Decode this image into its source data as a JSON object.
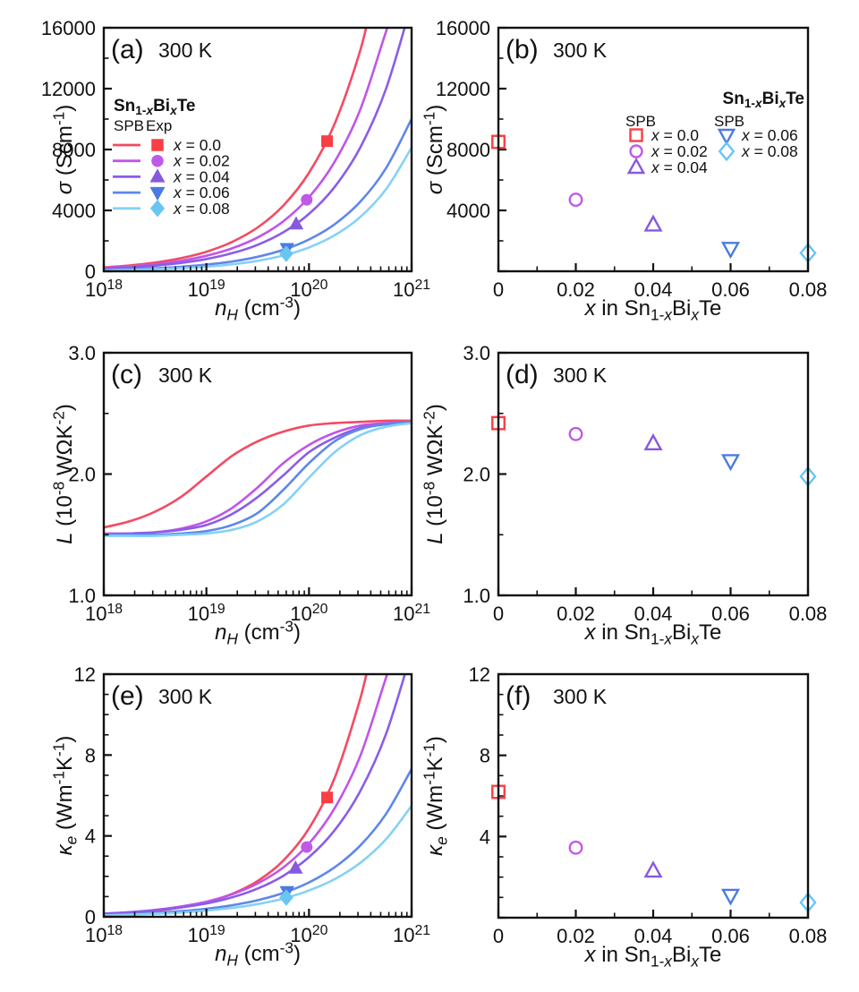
{
  "figure": {
    "temperature": "300 K",
    "material": "Sn_{1-/x/}Bi_{/x/}Te"
  },
  "styles": {
    "background": "#ffffff",
    "axis_color": "#111111",
    "line_colors": [
      "#f44a63",
      "#c055e8",
      "#8a5de8",
      "#5e86ec",
      "#85d1f6"
    ],
    "marker_colors": [
      "#fa3e44",
      "#bf5ae8",
      "#8659dd",
      "#4b7ae3",
      "#69c6f1"
    ],
    "markers": [
      "square",
      "circle",
      "triangle-up",
      "triangle-down",
      "diamond"
    ]
  },
  "series_labels": [
    "/x/ = 0.0",
    "/x/ = 0.02",
    "/x/ = 0.04",
    "/x/ = 0.06",
    "/x/ = 0.08"
  ],
  "log_x_samples": [
    18,
    18.25,
    18.5,
    18.75,
    19,
    19.25,
    19.5,
    19.75,
    20,
    20.25,
    20.5,
    20.75,
    21
  ],
  "chart_data": [
    {
      "id": "a",
      "panel_label": "(a)",
      "annotation": "300 K",
      "type": "line",
      "x_scale": "log",
      "xlabel": "/n/_{/H/} (cm^{-3})",
      "ylabel": "/σ/ (Scm^{-1})",
      "xlim_log": [
        18,
        21
      ],
      "ylim": [
        0,
        16000
      ],
      "xtick_labels": [
        "10^{18}",
        "10^{19}",
        "10^{20}",
        "10^{21}"
      ],
      "yticks": [
        0,
        4000,
        8000,
        12000,
        16000
      ],
      "ytick_labels": [
        "0",
        "4000",
        "8000",
        "12000",
        "16000"
      ],
      "yminor": [
        2000,
        6000,
        10000,
        14000
      ],
      "series": [
        {
          "name": "x = 0.0",
          "values": [
            255,
            382,
            573,
            858,
            1285,
            1925,
            2884,
            4320,
            6472,
            9695,
            14523,
            21756,
            32591
          ]
        },
        {
          "name": "x = 0.02",
          "values": [
            212,
            314,
            465,
            687,
            1016,
            1503,
            2223,
            3288,
            4863,
            7192,
            10637,
            15732,
            23268
          ]
        },
        {
          "name": "x = 0.04",
          "values": [
            173,
            254,
            373,
            549,
            807,
            1186,
            1744,
            2563,
            3768,
            5539,
            8143,
            11970,
            17596
          ]
        },
        {
          "name": "x = 0.06",
          "values": [
            91,
            134,
            199,
            294,
            435,
            644,
            953,
            1410,
            2087,
            3089,
            4572,
            6766,
            10014
          ]
        },
        {
          "name": "x = 0.08",
          "values": [
            58,
            88,
            133,
            200,
            302,
            456,
            688,
            1038,
            1567,
            2364,
            3568,
            5384,
            8124
          ]
        }
      ],
      "exp_points": {
        "n_H": [
          1.5e+20,
          9.5e+19,
          7.5e+19,
          6.1e+19,
          6e+19
        ],
        "values": [
          8550,
          4700,
          3100,
          1500,
          1150
        ]
      },
      "legend": {
        "title": "Sn_{1-/x/}Bi_{/x/}Te",
        "headers": [
          "SPB",
          "Exp"
        ],
        "items": [
          0,
          1,
          2,
          3,
          4
        ]
      }
    },
    {
      "id": "b",
      "panel_label": "(b)",
      "annotation": "300 K",
      "type": "scatter",
      "xlabel": "/x/ in Sn_{1-/x/}Bi_{/x/}Te",
      "ylabel": "/σ/ (Scm^{-1})",
      "xlim": [
        0,
        0.08
      ],
      "ylim": [
        0,
        16000
      ],
      "xticks": [
        0,
        0.02,
        0.04,
        0.06,
        0.08
      ],
      "xtick_labels": [
        "0",
        "0.02",
        "0.04",
        "0.06",
        "0.08"
      ],
      "xminor": [
        0.01,
        0.03,
        0.05,
        0.07
      ],
      "yticks": [
        0,
        4000,
        8000,
        12000,
        16000
      ],
      "ytick_labels": [
        "",
        "4000",
        "8000",
        "12000",
        "16000"
      ],
      "yminor": [
        2000,
        6000,
        10000,
        14000
      ],
      "x": [
        0,
        0.02,
        0.04,
        0.06,
        0.08
      ],
      "values": [
        8500,
        4700,
        3050,
        1500,
        1200
      ],
      "legend": {
        "title": "Sn_{1-/x/}Bi_{/x/}Te",
        "columns": [
          {
            "header": "SPB",
            "items": [
              0,
              1,
              2
            ]
          },
          {
            "header": "SPB",
            "items": [
              3,
              4
            ]
          }
        ]
      }
    },
    {
      "id": "c",
      "panel_label": "(c)",
      "annotation": "300 K",
      "type": "line",
      "x_scale": "log",
      "xlabel": "/n/_{/H/} (cm^{-3})",
      "ylabel": "/L/ (10^{-8} WΩK^{-2})",
      "xlim_log": [
        18,
        21
      ],
      "ylim": [
        1.0,
        3.0
      ],
      "xtick_labels": [
        "10^{18}",
        "10^{19}",
        "10^{20}",
        "10^{21}"
      ],
      "yticks": [
        1.0,
        2.0,
        3.0
      ],
      "ytick_labels": [
        "1.0",
        "2.0",
        "3.0"
      ],
      "yminor": [
        1.5,
        2.5
      ],
      "series": [
        {
          "name": "x = 0.0",
          "values": [
            1.56,
            1.61,
            1.69,
            1.81,
            1.98,
            2.15,
            2.27,
            2.35,
            2.4,
            2.42,
            2.43,
            2.44,
            2.44
          ]
        },
        {
          "name": "x = 0.02",
          "values": [
            1.51,
            1.51,
            1.52,
            1.55,
            1.61,
            1.72,
            1.89,
            2.09,
            2.24,
            2.34,
            2.4,
            2.42,
            2.43
          ]
        },
        {
          "name": "x = 0.04",
          "values": [
            1.5,
            1.51,
            1.52,
            1.54,
            1.58,
            1.67,
            1.81,
            1.99,
            2.18,
            2.3,
            2.38,
            2.41,
            2.43
          ]
        },
        {
          "name": "x = 0.06",
          "values": [
            1.5,
            1.5,
            1.5,
            1.51,
            1.53,
            1.58,
            1.68,
            1.87,
            2.09,
            2.27,
            2.37,
            2.41,
            2.43
          ]
        },
        {
          "name": "x = 0.08",
          "values": [
            1.49,
            1.49,
            1.49,
            1.5,
            1.51,
            1.54,
            1.61,
            1.75,
            1.97,
            2.18,
            2.32,
            2.39,
            2.42
          ]
        }
      ]
    },
    {
      "id": "d",
      "panel_label": "(d)",
      "annotation": "300 K",
      "type": "scatter",
      "xlabel": "/x/ in Sn_{1-/x/}Bi_{/x/}Te",
      "ylabel": "/L/ (10^{-8} WΩK^{-2})",
      "xlim": [
        0,
        0.08
      ],
      "ylim": [
        1.0,
        3.0
      ],
      "xticks": [
        0,
        0.02,
        0.04,
        0.06,
        0.08
      ],
      "xtick_labels": [
        "0",
        "0.02",
        "0.04",
        "0.06",
        "0.08"
      ],
      "xminor": [
        0.01,
        0.03,
        0.05,
        0.07
      ],
      "yticks": [
        1.0,
        2.0,
        3.0
      ],
      "ytick_labels": [
        "1.0",
        "2.0",
        "3.0"
      ],
      "yminor": [
        1.5,
        2.5
      ],
      "x": [
        0,
        0.02,
        0.04,
        0.06,
        0.08
      ],
      "values": [
        2.42,
        2.33,
        2.25,
        2.11,
        1.98
      ]
    },
    {
      "id": "e",
      "panel_label": "(e)",
      "annotation": "300 K",
      "type": "line",
      "x_scale": "log",
      "xlabel": "/n/_{/H/} (cm^{-3})",
      "ylabel": "/κ/_{/e/} (Wm^{-1}K^{-1})",
      "xlim_log": [
        18,
        21
      ],
      "ylim": [
        0,
        12
      ],
      "xtick_labels": [
        "10^{18}",
        "10^{19}",
        "10^{20}",
        "10^{21}"
      ],
      "yticks": [
        0,
        4,
        8,
        12
      ],
      "ytick_labels": [
        "0",
        "4",
        "8",
        "12"
      ],
      "yminor": [
        1,
        2,
        3,
        5,
        6,
        7,
        9,
        10,
        11
      ],
      "series": [
        {
          "name": "x = 0.0",
          "values": [
            0.12,
            0.19,
            0.29,
            0.46,
            0.72,
            1.13,
            1.77,
            2.78,
            4.37,
            6.87,
            10.8,
            16.96,
            26.65
          ]
        },
        {
          "name": "x = 0.02",
          "values": [
            0.16,
            0.23,
            0.34,
            0.51,
            0.75,
            1.11,
            1.65,
            2.44,
            3.62,
            5.37,
            7.96,
            11.81,
            17.51
          ]
        },
        {
          "name": "x = 0.04",
          "values": [
            0.15,
            0.22,
            0.32,
            0.46,
            0.66,
            0.96,
            1.4,
            2.03,
            2.95,
            4.28,
            6.22,
            9.03,
            13.11
          ]
        },
        {
          "name": "x = 0.06",
          "values": [
            0.09,
            0.13,
            0.19,
            0.28,
            0.4,
            0.57,
            0.82,
            1.18,
            1.7,
            2.45,
            3.53,
            5.08,
            7.31
          ]
        },
        {
          "name": "x = 0.08",
          "values": [
            0.07,
            0.1,
            0.15,
            0.21,
            0.31,
            0.44,
            0.63,
            0.9,
            1.3,
            1.86,
            2.67,
            3.83,
            5.49
          ]
        }
      ],
      "exp_points": {
        "n_H": [
          1.5e+20,
          9.5e+19,
          7.4e+19,
          6.1e+19,
          6e+19
        ],
        "values": [
          5.9,
          3.45,
          2.4,
          1.25,
          0.95
        ]
      }
    },
    {
      "id": "f",
      "panel_label": "(f)",
      "annotation": "300 K",
      "type": "scatter",
      "xlabel": "/x/ in Sn_{1-/x/}Bi_{/x/}Te",
      "ylabel": "/κ/_{/e/} (Wm^{-1}K^{-1})",
      "xlim": [
        0,
        0.08
      ],
      "ylim": [
        0,
        12
      ],
      "xticks": [
        0,
        0.02,
        0.04,
        0.06,
        0.08
      ],
      "xtick_labels": [
        "0",
        "0.02",
        "0.04",
        "0.06",
        "0.08"
      ],
      "xminor": [
        0.01,
        0.03,
        0.05,
        0.07
      ],
      "yticks": [
        0,
        4,
        8,
        12
      ],
      "ytick_labels": [
        "",
        "4",
        "8",
        "12"
      ],
      "yminor": [
        1,
        2,
        3,
        5,
        6,
        7,
        9,
        10,
        11
      ],
      "x": [
        0,
        0.02,
        0.04,
        0.06,
        0.08
      ],
      "values": [
        6.2,
        3.45,
        2.3,
        1.1,
        0.75
      ]
    }
  ]
}
